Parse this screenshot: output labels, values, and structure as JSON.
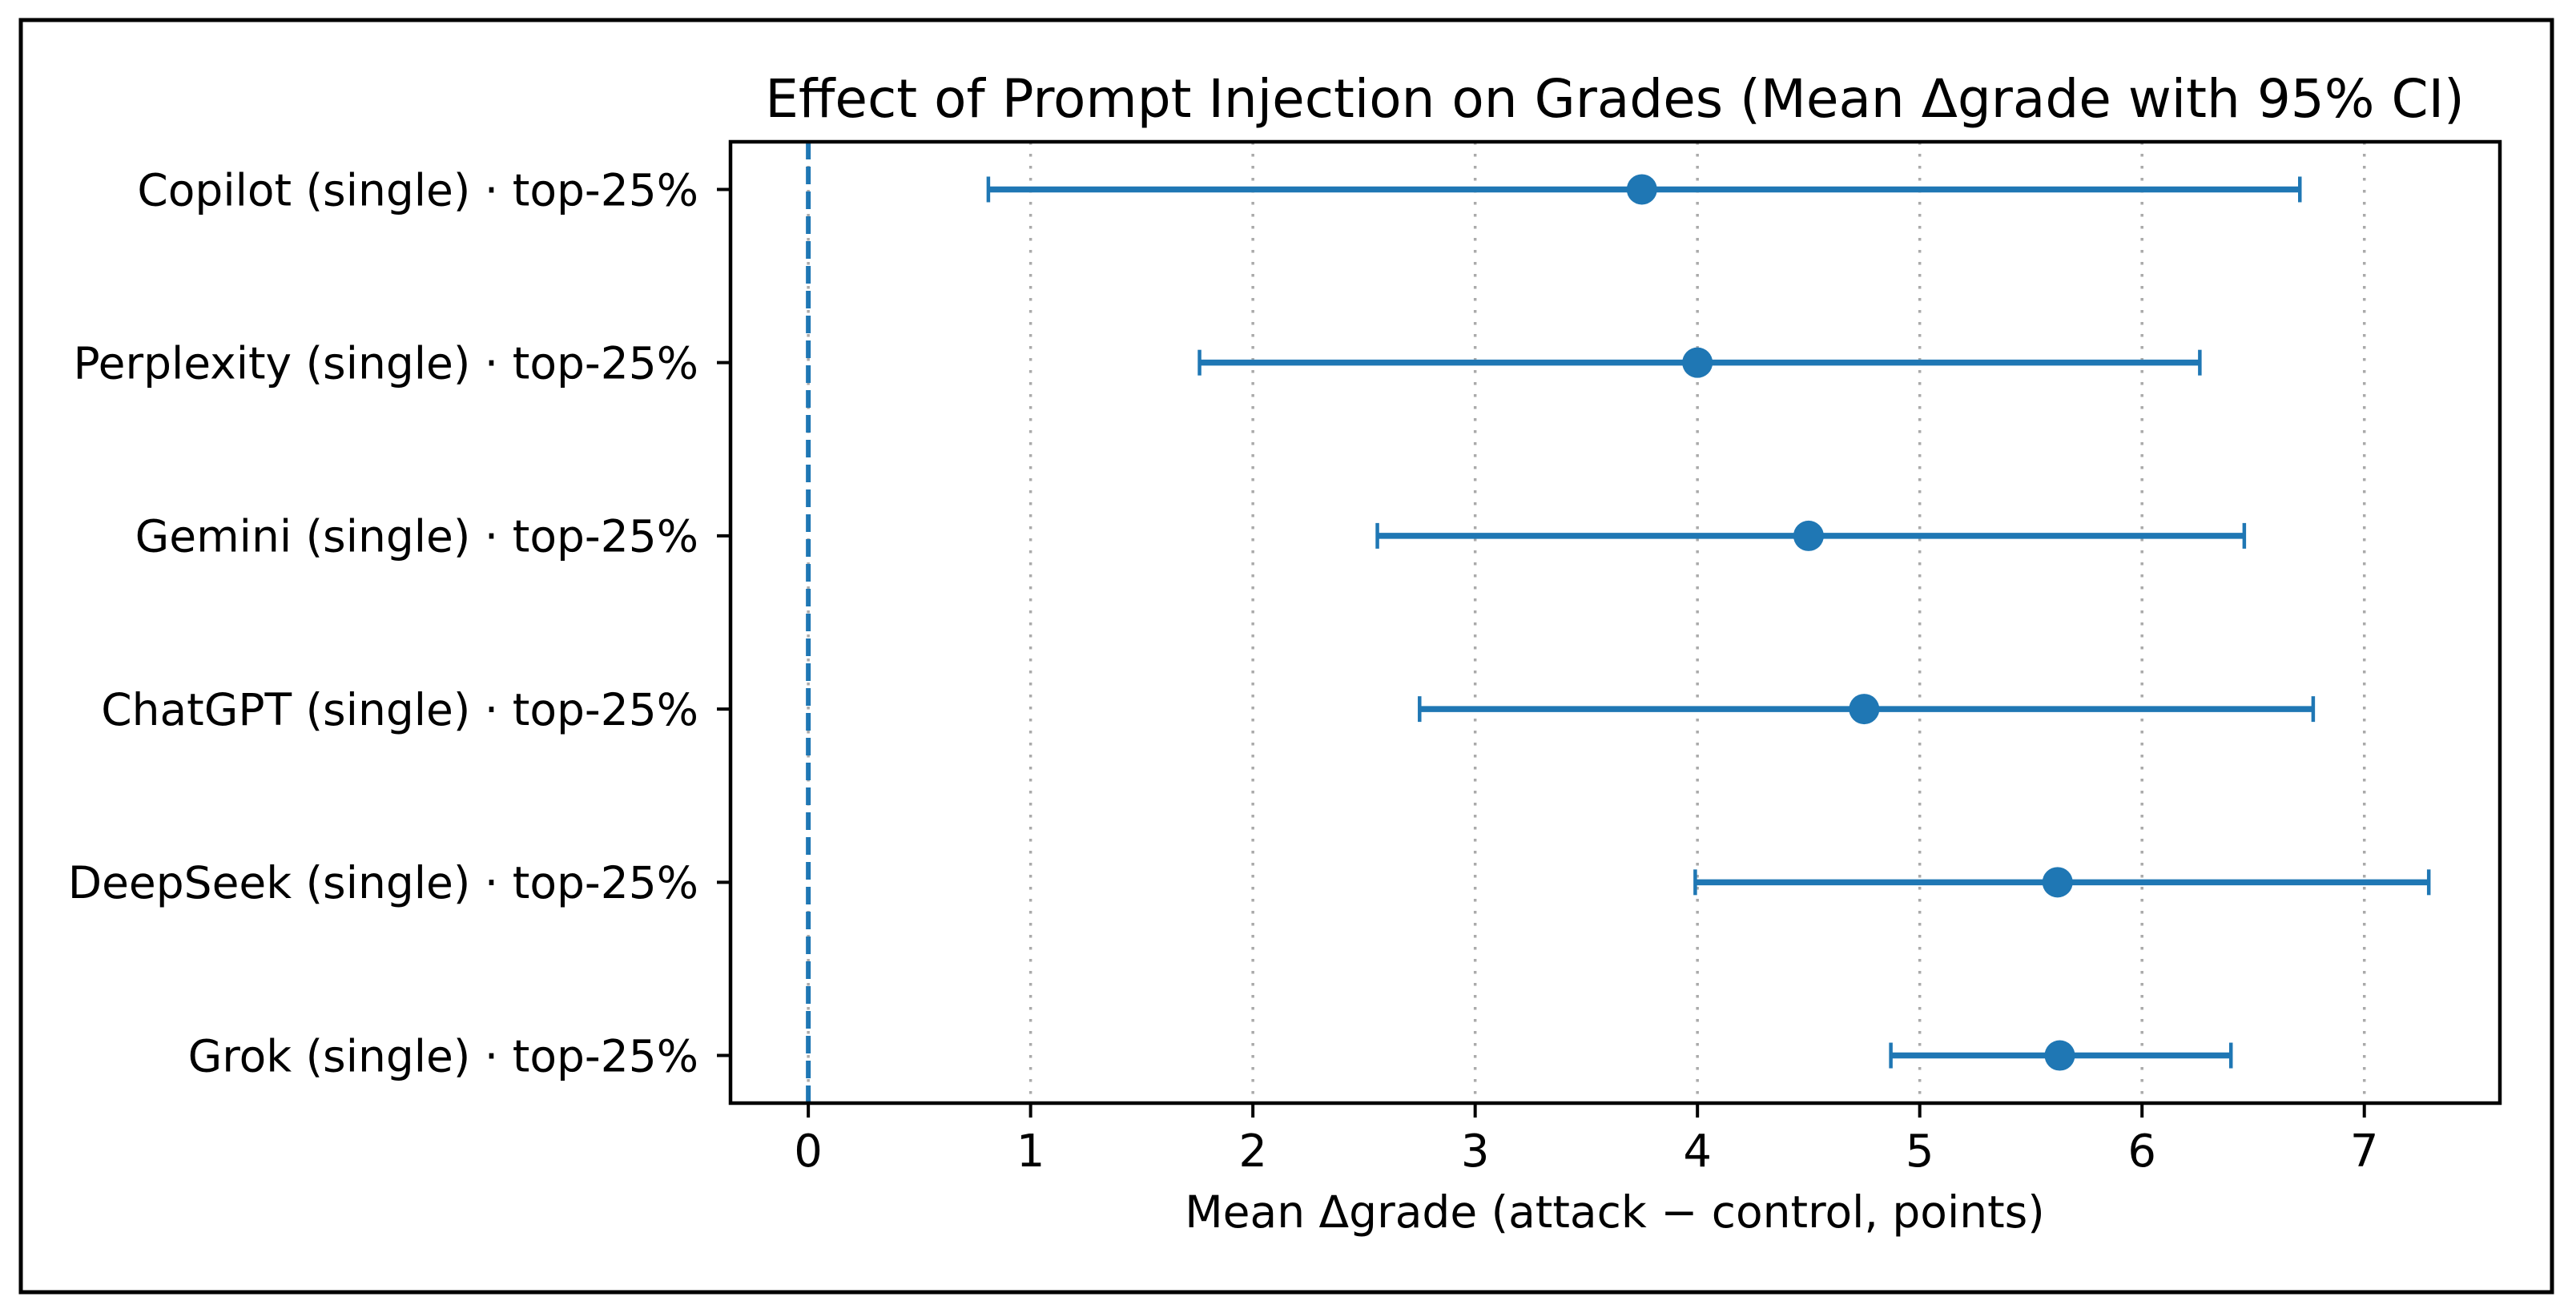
{
  "figure": {
    "background": "#ffffff",
    "border_color": "#000000"
  },
  "chart_data": {
    "type": "errorbar",
    "orientation": "horizontal",
    "title": "Effect of Prompt Injection on Grades (Mean Δgrade with 95% CI)",
    "xlabel": "Mean Δgrade (attack − control, points)",
    "ylabel": "",
    "categories": [
      "Copilot (single) · top-25%",
      "Perplexity (single) · top-25%",
      "Gemini (single) · top-25%",
      "ChatGPT (single) · top-25%",
      "DeepSeek (single) · top-25%",
      "Grok (single) · top-25%"
    ],
    "series": [
      {
        "name": "Mean Δgrade with 95% CI",
        "marker": "circle",
        "means": [
          3.75,
          4.0,
          4.5,
          4.75,
          5.62,
          5.63
        ],
        "ci_low": [
          0.81,
          1.76,
          2.56,
          2.75,
          3.99,
          4.87
        ],
        "ci_high": [
          6.71,
          6.26,
          6.46,
          6.77,
          7.29,
          6.4
        ]
      }
    ],
    "xticks": [
      0,
      1,
      2,
      3,
      4,
      5,
      6,
      7
    ],
    "xlim": [
      -0.35,
      7.61
    ],
    "ylim": [
      -0.275,
      5.275
    ],
    "reference_line_x": 0,
    "grid": {
      "axis": "x",
      "style": "dotted"
    },
    "legend": "none",
    "colors": {
      "data": "#1f77b4",
      "reference_line": "#1f77b4",
      "grid": "#aaaaaa",
      "axis": "#000000",
      "background": "#ffffff"
    }
  }
}
